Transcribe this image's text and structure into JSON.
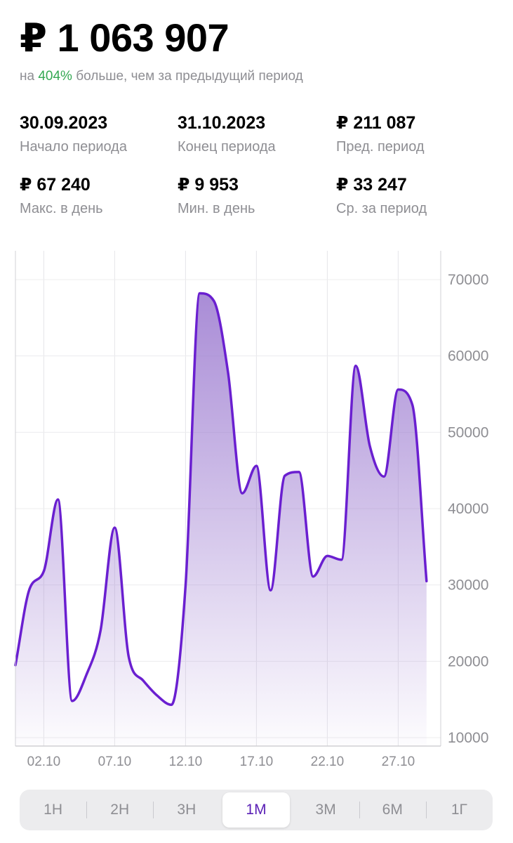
{
  "header": {
    "total": "₽ 1 063 907",
    "subtitle_prefix": "на ",
    "subtitle_pct": "404%",
    "subtitle_suffix": " больше, чем за предыдущий период"
  },
  "colors": {
    "accent": "#6a1fd0",
    "positive": "#34a853",
    "muted": "#8e8e93"
  },
  "stats": [
    {
      "value": "30.09.2023",
      "label": "Начало периода"
    },
    {
      "value": "31.10.2023",
      "label": "Конец периода"
    },
    {
      "value": "₽  211 087",
      "label": "Пред. период"
    },
    {
      "value": "₽ 67 240",
      "label": "Макс. в день"
    },
    {
      "value": "₽ 9 953",
      "label": "Мин. в день"
    },
    {
      "value": "₽ 33 247",
      "label": "Ср. за период"
    }
  ],
  "chart_data": {
    "type": "area",
    "x": [
      "30.09",
      "01.10",
      "02.10",
      "03.10",
      "04.10",
      "05.10",
      "06.10",
      "07.10",
      "08.10",
      "09.10",
      "10.10",
      "11.10",
      "12.10",
      "13.10",
      "14.10",
      "15.10",
      "16.10",
      "17.10",
      "18.10",
      "19.10",
      "20.10",
      "21.10",
      "22.10",
      "23.10",
      "24.10",
      "25.10",
      "26.10",
      "27.10",
      "28.10",
      "29.10",
      "30.10"
    ],
    "values": [
      19500,
      29500,
      31800,
      41200,
      14800,
      18200,
      24000,
      37500,
      20500,
      17500,
      15500,
      14300,
      29900,
      68200,
      67200,
      57800,
      42000,
      45600,
      29300,
      44300,
      44800,
      31100,
      33800,
      33300,
      58700,
      48200,
      44200,
      55600,
      53600,
      30500,
      null
    ],
    "x_tick_labels": [
      "02.10",
      "07.10",
      "12.10",
      "17.10",
      "22.10",
      "27.10"
    ],
    "y_tick_labels": [
      "10000",
      "20000",
      "30000",
      "40000",
      "50000",
      "60000",
      "70000"
    ],
    "ylim": [
      10000,
      70000
    ],
    "grid": true,
    "y_axis_position": "right"
  },
  "periods": {
    "options": [
      "1Н",
      "2Н",
      "3Н",
      "1М",
      "3М",
      "6М",
      "1Г"
    ],
    "selected": "1М"
  }
}
